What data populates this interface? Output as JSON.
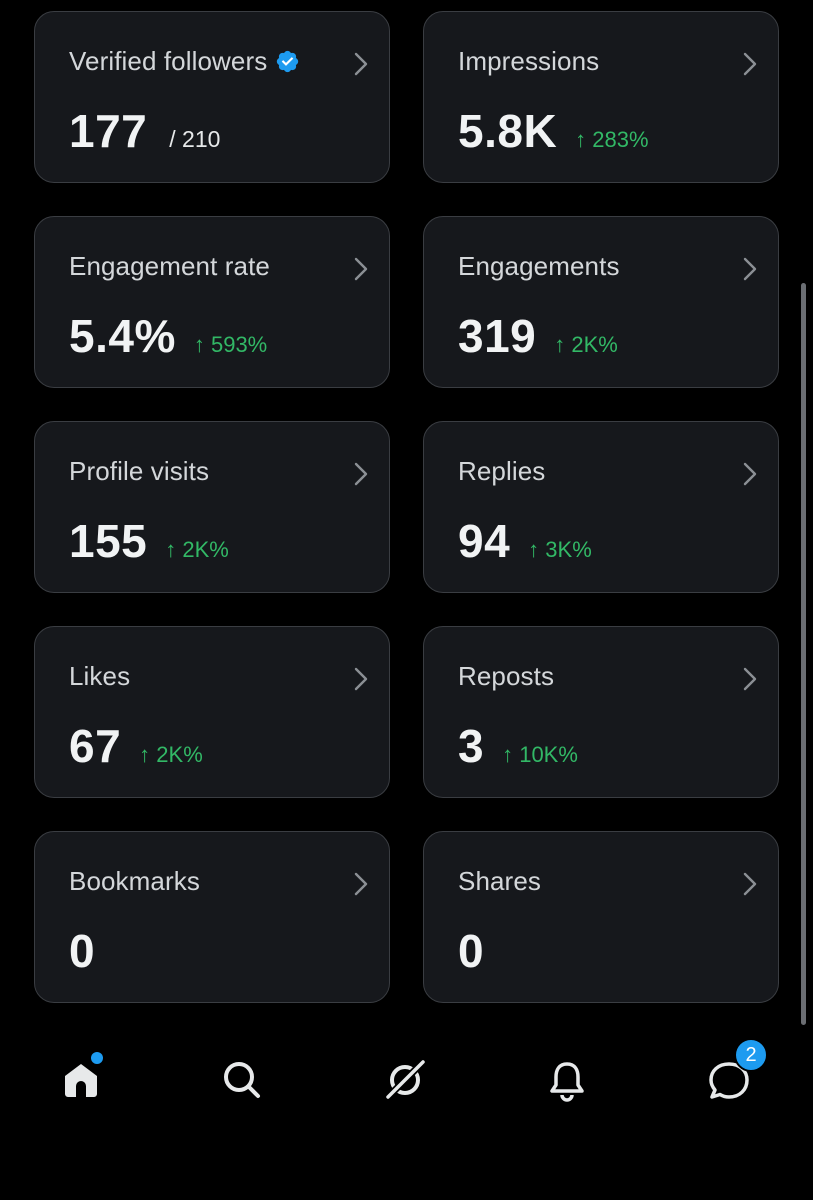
{
  "colors": {
    "background": "#000000",
    "card_background": "#16181c",
    "card_border": "#3a3d42",
    "positive_change": "#32b866",
    "accent_blue": "#1d9bf0"
  },
  "metrics": [
    {
      "title": "Verified followers",
      "value": "177",
      "sub": "/ 210",
      "change": "",
      "verified_icon": "verified-badge-icon"
    },
    {
      "title": "Impressions",
      "value": "5.8K",
      "sub": "",
      "change": "↑ 283%"
    },
    {
      "title": "Engagement rate",
      "value": "5.4%",
      "sub": "",
      "change": "↑ 593%"
    },
    {
      "title": "Engagements",
      "value": "319",
      "sub": "",
      "change": "↑ 2K%"
    },
    {
      "title": "Profile visits",
      "value": "155",
      "sub": "",
      "change": "↑ 2K%"
    },
    {
      "title": "Replies",
      "value": "94",
      "sub": "",
      "change": "↑ 3K%"
    },
    {
      "title": "Likes",
      "value": "67",
      "sub": "",
      "change": "↑ 2K%"
    },
    {
      "title": "Reposts",
      "value": "3",
      "sub": "",
      "change": "↑ 10K%"
    },
    {
      "title": "Bookmarks",
      "value": "0",
      "sub": "",
      "change": ""
    },
    {
      "title": "Shares",
      "value": "0",
      "sub": "",
      "change": ""
    }
  ],
  "tabbar": {
    "tabs": [
      {
        "icon": "home-icon",
        "has_dot": true
      },
      {
        "icon": "search-icon",
        "has_dot": false
      },
      {
        "icon": "grok-icon",
        "has_dot": false
      },
      {
        "icon": "bell-icon",
        "has_dot": false
      },
      {
        "icon": "messages-icon",
        "has_dot": false
      }
    ],
    "messages_badge": "2"
  }
}
